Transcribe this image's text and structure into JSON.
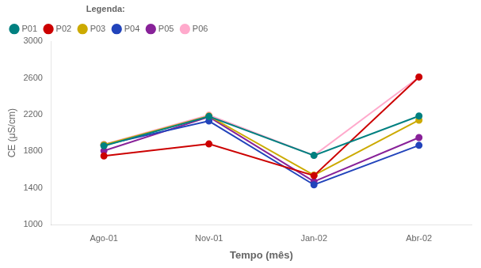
{
  "chart_data": {
    "type": "line",
    "categories": [
      "Ago-01",
      "Nov-01",
      "Jan-02",
      "Abr-02"
    ],
    "series": [
      {
        "name": "P01",
        "color": "#008080",
        "values": [
          1860,
          2180,
          1755,
          2185
        ]
      },
      {
        "name": "P02",
        "color": "#cc0000",
        "values": [
          1750,
          1880,
          1535,
          2610
        ]
      },
      {
        "name": "P03",
        "color": "#ccaa00",
        "values": [
          1870,
          2185,
          1540,
          2140
        ]
      },
      {
        "name": "P04",
        "color": "#2244bb",
        "values": [
          1870,
          2130,
          1435,
          1865
        ]
      },
      {
        "name": "P05",
        "color": "#882299",
        "values": [
          1805,
          2175,
          1470,
          1950
        ]
      },
      {
        "name": "P06",
        "color": "#ffaacc",
        "values": [
          1875,
          2195,
          1755,
          2610
        ]
      }
    ],
    "xlabel": "Tempo (mês)",
    "ylabel": "CE (μS/cm)",
    "legend_title": "Legenda:",
    "ylim": [
      1000,
      3000
    ],
    "yticks": [
      1000,
      1400,
      1800,
      2200,
      2600,
      3000
    ],
    "grid": false,
    "legend": "upper left",
    "marker": "circle"
  }
}
